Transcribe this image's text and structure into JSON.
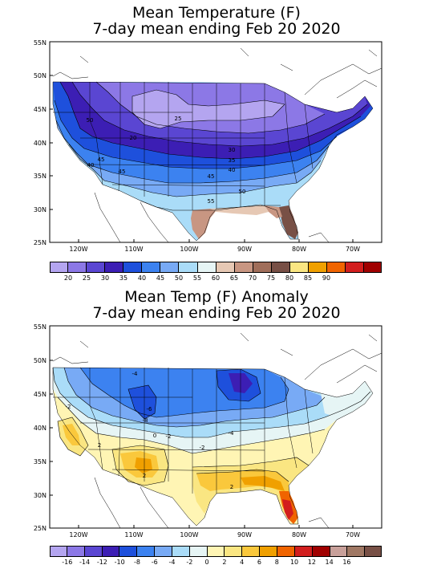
{
  "panel1": {
    "title_line1": "Mean Temperature (F)",
    "title_line2": "7-day mean ending Feb 20 2020",
    "lat_labels": [
      "55N",
      "50N",
      "45N",
      "40N",
      "35N",
      "30N",
      "25N"
    ],
    "lon_labels": [
      "120W",
      "110W",
      "100W",
      "90W",
      "80W",
      "70W"
    ],
    "contour_labels": [
      "50",
      "25",
      "20",
      "30",
      "35",
      "40",
      "45",
      "45",
      "40",
      "45",
      "50",
      "55"
    ],
    "colorbar_ticks": [
      "20",
      "25",
      "30",
      "35",
      "40",
      "45",
      "50",
      "55",
      "60",
      "65",
      "70",
      "75",
      "80",
      "85",
      "90"
    ],
    "colorbar_colors": [
      "#b4a5f0",
      "#8c78e6",
      "#5a46d2",
      "#3c1eb4",
      "#1e50dc",
      "#3c82f0",
      "#78aaf5",
      "#aadcf8",
      "#e6f5f5",
      "#e6c8b4",
      "#c89682",
      "#a06e5a",
      "#785046",
      "#fae682",
      "#f0a000",
      "#f06400",
      "#d21e1e",
      "#a00000"
    ],
    "cbar_segments": 18
  },
  "panel2": {
    "title_line1": "Mean Temp (F) Anomaly",
    "title_line2": "7-day mean ending Feb 20 2020",
    "lat_labels": [
      "55N",
      "50N",
      "45N",
      "40N",
      "35N",
      "30N",
      "25N"
    ],
    "lon_labels": [
      "120W",
      "110W",
      "100W",
      "90W",
      "80W",
      "70W"
    ],
    "contour_labels": [
      "-4",
      "-2",
      "-6",
      "-8",
      "-2",
      "-4",
      "-2",
      "0",
      "2",
      "2",
      "2"
    ],
    "colorbar_ticks": [
      "-16",
      "-14",
      "-12",
      "-10",
      "-8",
      "-6",
      "-4",
      "-2",
      "0",
      "2",
      "4",
      "6",
      "8",
      "10",
      "12",
      "14",
      "16"
    ],
    "colorbar_colors": [
      "#b4a5f0",
      "#8c78e6",
      "#5a46d2",
      "#3c1eb4",
      "#1e50dc",
      "#3c82f0",
      "#78aaf5",
      "#aadcf8",
      "#e6f5f5",
      "#fff5b4",
      "#fae682",
      "#fac83c",
      "#f0a000",
      "#f06400",
      "#d21e1e",
      "#a00000",
      "#c8a09a",
      "#a07864",
      "#785046"
    ],
    "cbar_segments": 19
  }
}
